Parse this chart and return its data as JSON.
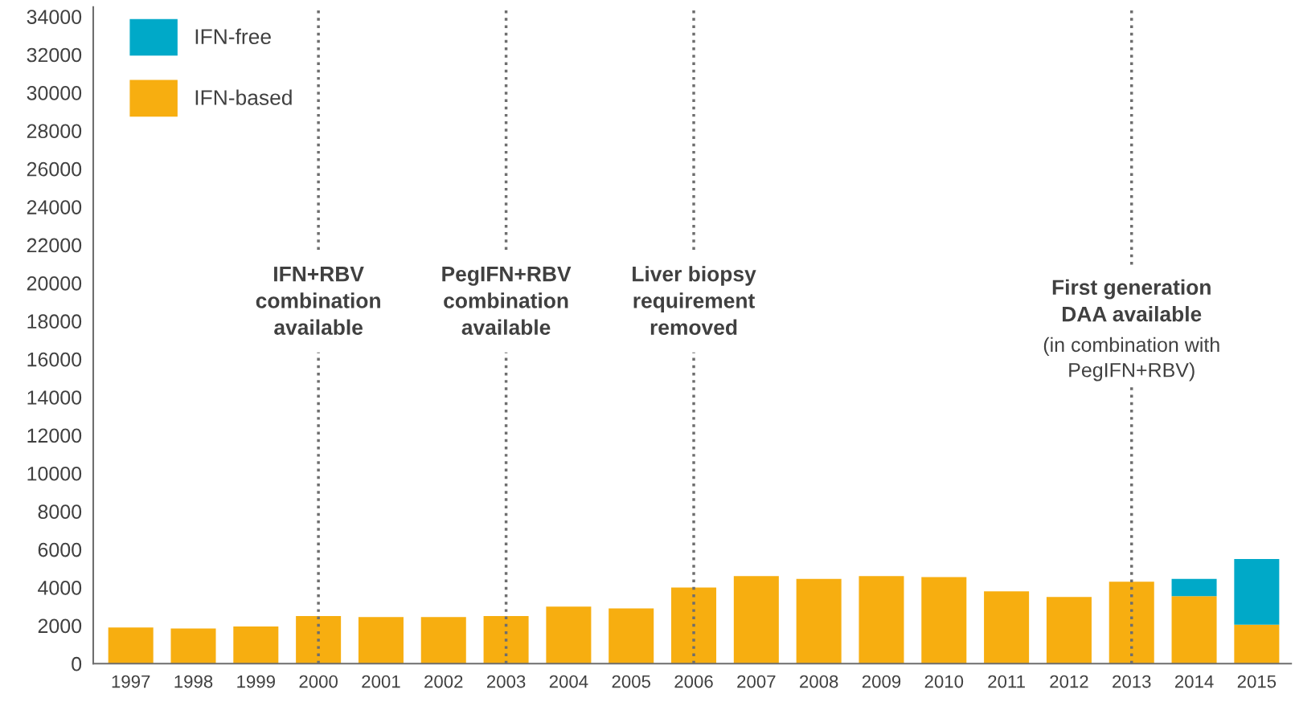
{
  "chart_data": {
    "type": "bar",
    "stacked": true,
    "categories": [
      "1997",
      "1998",
      "1999",
      "2000",
      "2001",
      "2002",
      "2003",
      "2004",
      "2005",
      "2006",
      "2007",
      "2008",
      "2009",
      "2010",
      "2011",
      "2012",
      "2013",
      "2014",
      "2015"
    ],
    "series": [
      {
        "name": "IFN-based",
        "color": "#f7ae10",
        "values": [
          1900,
          1850,
          1950,
          2500,
          2450,
          2450,
          2500,
          3000,
          2900,
          4000,
          4600,
          4450,
          4600,
          4550,
          3800,
          3500,
          4300,
          3550,
          2050
        ]
      },
      {
        "name": "IFN-free",
        "color": "#00a9c8",
        "values": [
          0,
          0,
          0,
          0,
          0,
          0,
          0,
          0,
          0,
          0,
          0,
          0,
          0,
          0,
          0,
          0,
          0,
          900,
          3450
        ]
      }
    ],
    "ylim": [
      0,
      34500
    ],
    "yticks": [
      0,
      2000,
      4000,
      6000,
      8000,
      10000,
      12000,
      14000,
      16000,
      18000,
      20000,
      22000,
      24000,
      26000,
      28000,
      30000,
      32000,
      34000
    ],
    "grid": false,
    "legend": "top left",
    "ref_lines": [
      {
        "axis": "x",
        "value": "2000",
        "label": "IFN+RBV\ncombination\navailable",
        "color": "#6e6e6e",
        "line_style": "dotted"
      },
      {
        "axis": "x",
        "value": "2003",
        "label": "PegIFN+RBV\ncombination\navailable",
        "color": "#6e6e6e",
        "line_style": "dotted"
      },
      {
        "axis": "x",
        "value": "2006",
        "label": "Liver biopsy\nrequirement\nremoved",
        "color": "#6e6e6e",
        "line_style": "dotted"
      },
      {
        "axis": "x",
        "value": "2013",
        "label": "First generation\nDAA available",
        "color": "#6e6e6e",
        "line_style": "dotted"
      }
    ],
    "annotations": [
      {
        "text": "(in combination with\nPegIFN+RBV)",
        "x": "2013",
        "y": 16000
      }
    ]
  }
}
